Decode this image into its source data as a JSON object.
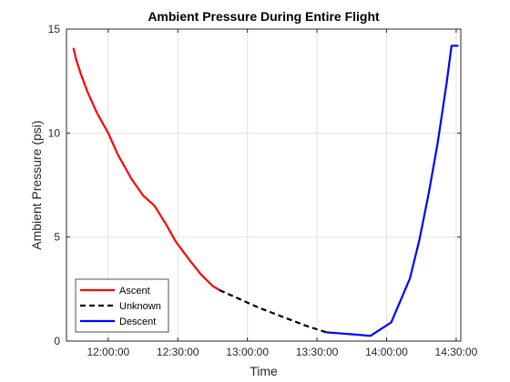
{
  "chart_data": {
    "type": "line",
    "title": "Ambient Pressure During Entire Flight",
    "xlabel": "Time",
    "ylabel": "Ambient Pressure (psi)",
    "x_unit": "time of day",
    "xlim": [
      "11:42:00",
      "14:32:00"
    ],
    "ylim": [
      0,
      15
    ],
    "xticks": [
      "12:00:00",
      "12:30:00",
      "13:00:00",
      "13:30:00",
      "14:00:00",
      "14:30:00"
    ],
    "yticks": [
      0,
      5,
      10,
      15
    ],
    "grid": true,
    "legend_location": "bottom-left",
    "series": [
      {
        "name": "Ascent",
        "color": "#ff0000",
        "style": "solid",
        "points": [
          [
            "11:45:00",
            14.1
          ],
          [
            "11:46:00",
            13.6
          ],
          [
            "11:48:00",
            12.9
          ],
          [
            "11:51:00",
            12.0
          ],
          [
            "11:55:00",
            11.0
          ],
          [
            "12:00:00",
            10.0
          ],
          [
            "12:04:00",
            9.0
          ],
          [
            "12:10:00",
            7.8
          ],
          [
            "12:15:00",
            7.0
          ],
          [
            "12:20:00",
            6.5
          ],
          [
            "12:25:00",
            5.6
          ],
          [
            "12:29:00",
            4.8
          ],
          [
            "12:35:00",
            3.9
          ],
          [
            "12:40:00",
            3.2
          ],
          [
            "12:45:00",
            2.65
          ],
          [
            "12:48:00",
            2.45
          ]
        ]
      },
      {
        "name": "Unknown",
        "color": "#000000",
        "style": "dashed",
        "points": [
          [
            "12:48:00",
            2.45
          ],
          [
            "13:05:00",
            1.6
          ],
          [
            "13:25:00",
            0.75
          ],
          [
            "13:34:00",
            0.42
          ]
        ]
      },
      {
        "name": "Descent",
        "color": "#0000ff",
        "style": "solid",
        "points": [
          [
            "13:34:00",
            0.42
          ],
          [
            "13:48:00",
            0.3
          ],
          [
            "13:53:00",
            0.25
          ],
          [
            "14:02:00",
            0.9
          ],
          [
            "14:10:00",
            3.0
          ],
          [
            "14:14:00",
            4.8
          ],
          [
            "14:18:00",
            7.0
          ],
          [
            "14:22:00",
            9.5
          ],
          [
            "14:26:00",
            12.5
          ],
          [
            "14:28:00",
            14.2
          ],
          [
            "14:31:00",
            14.2
          ]
        ]
      }
    ]
  }
}
